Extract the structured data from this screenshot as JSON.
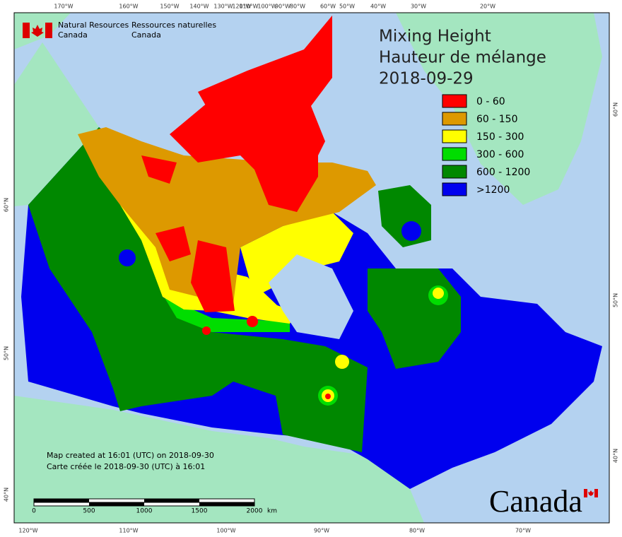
{
  "header": {
    "en": [
      "Natural Resources",
      "Canada"
    ],
    "fr": [
      "Ressources naturelles",
      "Canada"
    ]
  },
  "title": [
    "Mixing Height",
    "Hauteur de mélange",
    "2018-09-29"
  ],
  "legend": [
    {
      "label": "0 - 60",
      "color": "#ff0000"
    },
    {
      "label": "60 - 150",
      "color": "#dd9900"
    },
    {
      "label": "150 - 300",
      "color": "#ffff00"
    },
    {
      "label": "300 - 600",
      "color": "#00dd00"
    },
    {
      "label": "600 - 1200",
      "color": "#008800"
    },
    {
      "label": ">1200",
      "color": "#0000ee"
    }
  ],
  "top_longitudes": [
    "170°W",
    "160°W",
    "150°W",
    "140°W",
    "130°W",
    "120°W",
    "110°W",
    "100°W",
    "90°W",
    "80°W",
    "60°W",
    "50°W",
    "40°W",
    "30°W",
    "20°W"
  ],
  "bottom_longitudes": [
    "120°W",
    "110°W",
    "100°W",
    "90°W",
    "80°W",
    "70°W"
  ],
  "left_latitudes": [
    "60°N",
    "50°N",
    "40°N"
  ],
  "right_latitudes": [
    "60°N",
    "50°N",
    "40°N"
  ],
  "scale_bar": {
    "labels": [
      "0",
      "500",
      "1000",
      "1500",
      "2000"
    ],
    "unit": "km"
  },
  "credits": [
    "Map created at 16:01 (UTC) on 2018-09-30",
    "Carte créée le 2018-09-30 (UTC) à 16:01"
  ],
  "wordmark": "Canada"
}
